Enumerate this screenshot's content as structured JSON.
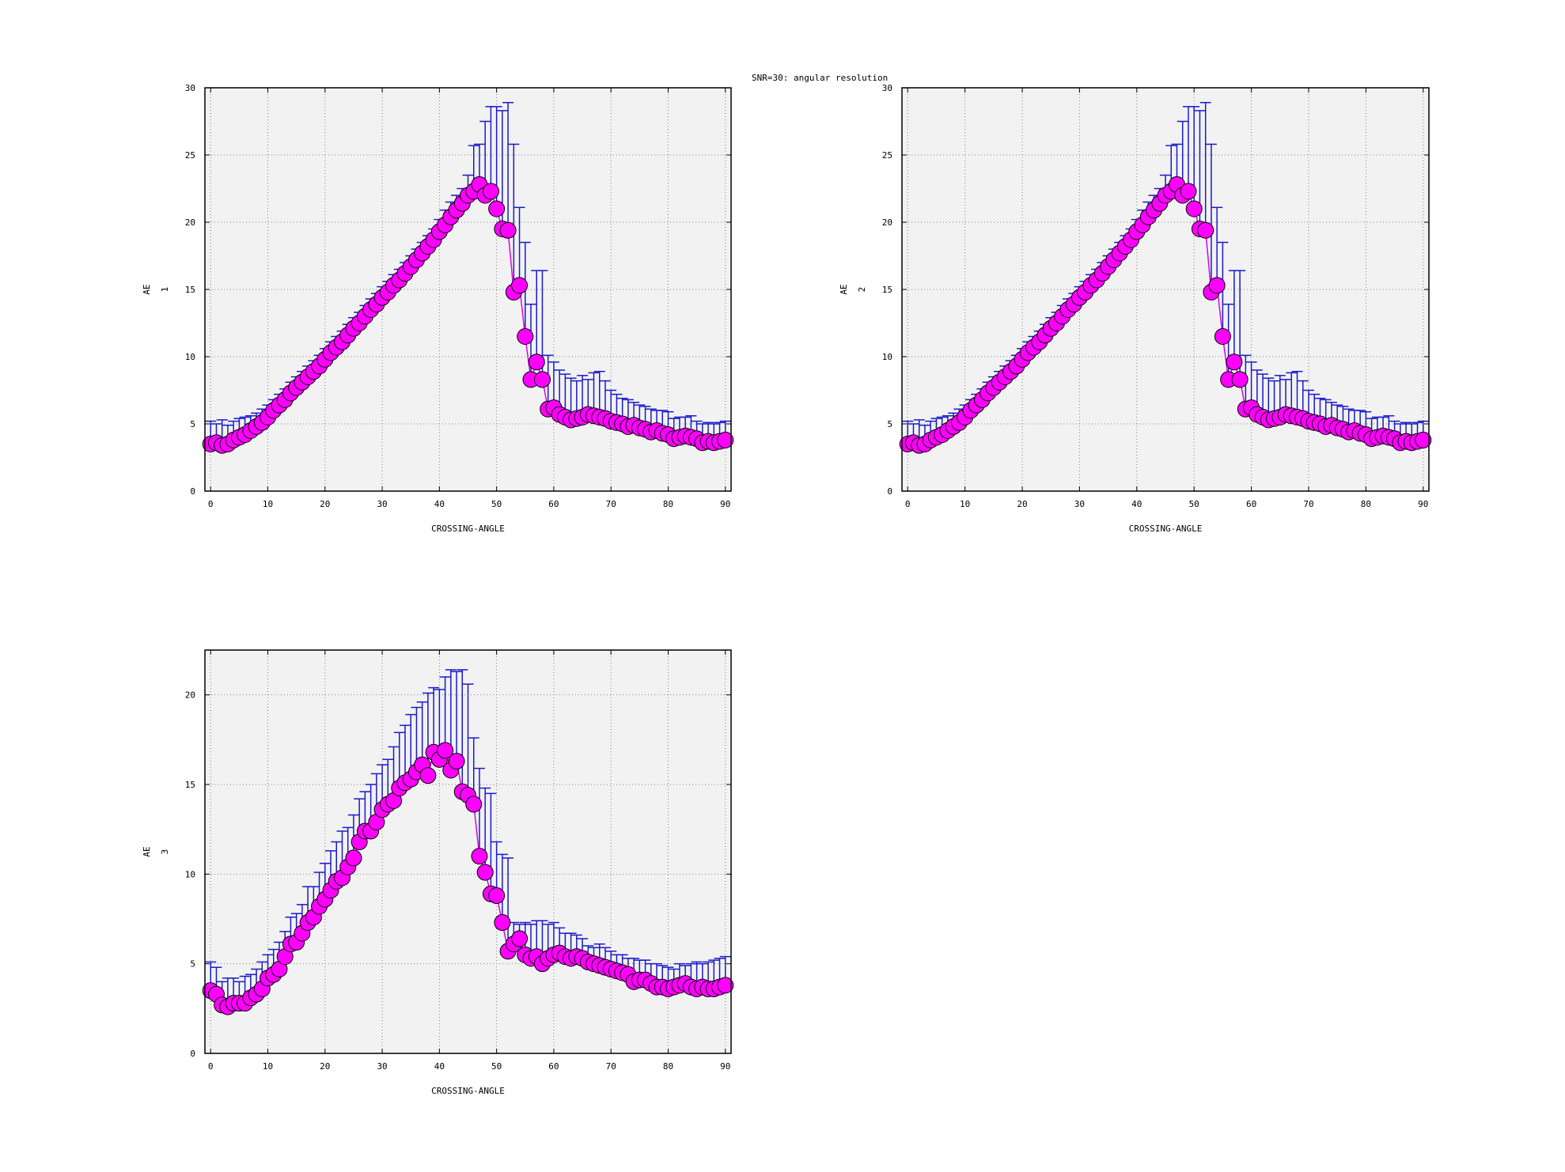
{
  "figure": {
    "title": "SNR=30: angular resolution"
  },
  "colors": {
    "background": "#ffffff",
    "plot_area": "#f2f2f2",
    "grid": "#808080",
    "marker_fill": "#ff00ff",
    "marker_edge": "#000000",
    "error_bar": "#1a1acc",
    "line": "#e000e0"
  },
  "chart_data": [
    {
      "type": "scatter",
      "title": "",
      "xlabel": "CROSSING-ANGLE",
      "ylabel": "AE",
      "ylabel_sub": "1",
      "xlim": [
        -1,
        91
      ],
      "ylim": [
        0,
        30
      ],
      "xticks": [
        0,
        10,
        20,
        30,
        40,
        50,
        60,
        70,
        80,
        90
      ],
      "yticks": [
        0,
        5,
        10,
        15,
        20,
        25,
        30
      ],
      "grid": true,
      "x": [
        0,
        1,
        2,
        3,
        4,
        5,
        6,
        7,
        8,
        9,
        10,
        11,
        12,
        13,
        14,
        15,
        16,
        17,
        18,
        19,
        20,
        21,
        22,
        23,
        24,
        25,
        26,
        27,
        28,
        29,
        30,
        31,
        32,
        33,
        34,
        35,
        36,
        37,
        38,
        39,
        40,
        41,
        42,
        43,
        44,
        45,
        46,
        47,
        48,
        49,
        50,
        51,
        52,
        53,
        54,
        55,
        56,
        57,
        58,
        59,
        60,
        61,
        62,
        63,
        64,
        65,
        66,
        67,
        68,
        69,
        70,
        71,
        72,
        73,
        74,
        75,
        76,
        77,
        78,
        79,
        80,
        81,
        82,
        83,
        84,
        85,
        86,
        87,
        88,
        89,
        90
      ],
      "y": [
        3.5,
        3.6,
        3.4,
        3.5,
        3.8,
        4.0,
        4.2,
        4.5,
        4.8,
        5.1,
        5.5,
        6.0,
        6.4,
        6.8,
        7.3,
        7.7,
        8.1,
        8.5,
        8.9,
        9.3,
        9.8,
        10.3,
        10.7,
        11.1,
        11.6,
        12.1,
        12.5,
        13.0,
        13.5,
        13.9,
        14.4,
        14.8,
        15.3,
        15.7,
        16.2,
        16.7,
        17.2,
        17.7,
        18.2,
        18.7,
        19.3,
        19.8,
        20.4,
        20.9,
        21.4,
        22.0,
        22.3,
        22.8,
        22.0,
        22.3,
        21.0,
        19.5,
        19.4,
        14.8,
        15.3,
        11.5,
        8.3,
        9.6,
        8.3,
        6.1,
        6.2,
        5.7,
        5.5,
        5.3,
        5.4,
        5.5,
        5.7,
        5.6,
        5.5,
        5.4,
        5.2,
        5.1,
        5.0,
        4.8,
        4.9,
        4.7,
        4.6,
        4.4,
        4.5,
        4.3,
        4.2,
        3.9,
        4.0,
        4.1,
        4.0,
        3.9,
        3.6,
        3.7,
        3.6,
        3.7,
        3.8
      ],
      "yerr_upper": [
        5.2,
        5.0,
        5.3,
        4.9,
        5.2,
        5.4,
        5.5,
        5.6,
        5.8,
        6.1,
        6.4,
        6.8,
        7.2,
        7.6,
        8.1,
        8.5,
        8.9,
        9.3,
        9.7,
        10.1,
        10.6,
        11.1,
        11.5,
        11.9,
        12.4,
        12.9,
        13.3,
        13.8,
        14.3,
        14.7,
        15.2,
        15.6,
        16.1,
        16.5,
        17.0,
        17.5,
        18.0,
        18.5,
        19.0,
        19.5,
        20.2,
        20.9,
        21.5,
        22.0,
        22.5,
        23.5,
        25.7,
        25.8,
        27.5,
        28.6,
        28.6,
        28.3,
        28.9,
        25.8,
        21.1,
        18.5,
        13.9,
        16.4,
        16.4,
        10.1,
        9.6,
        9.0,
        8.7,
        8.4,
        8.2,
        8.6,
        8.3,
        8.8,
        8.9,
        8.2,
        7.5,
        7.2,
        6.9,
        6.8,
        6.6,
        6.4,
        6.3,
        6.1,
        6.0,
        6.0,
        5.9,
        5.4,
        5.5,
        5.5,
        5.6,
        5.2,
        5.0,
        5.1,
        5.0,
        5.1,
        5.2
      ]
    },
    {
      "type": "scatter",
      "title": "",
      "xlabel": "CROSSING-ANGLE",
      "ylabel": "AE",
      "ylabel_sub": "2",
      "xlim": [
        -1,
        91
      ],
      "ylim": [
        0,
        30
      ],
      "xticks": [
        0,
        10,
        20,
        30,
        40,
        50,
        60,
        70,
        80,
        90
      ],
      "yticks": [
        0,
        5,
        10,
        15,
        20,
        25,
        30
      ],
      "grid": true,
      "x": [
        0,
        1,
        2,
        3,
        4,
        5,
        6,
        7,
        8,
        9,
        10,
        11,
        12,
        13,
        14,
        15,
        16,
        17,
        18,
        19,
        20,
        21,
        22,
        23,
        24,
        25,
        26,
        27,
        28,
        29,
        30,
        31,
        32,
        33,
        34,
        35,
        36,
        37,
        38,
        39,
        40,
        41,
        42,
        43,
        44,
        45,
        46,
        47,
        48,
        49,
        50,
        51,
        52,
        53,
        54,
        55,
        56,
        57,
        58,
        59,
        60,
        61,
        62,
        63,
        64,
        65,
        66,
        67,
        68,
        69,
        70,
        71,
        72,
        73,
        74,
        75,
        76,
        77,
        78,
        79,
        80,
        81,
        82,
        83,
        84,
        85,
        86,
        87,
        88,
        89,
        90
      ],
      "y": [
        3.5,
        3.6,
        3.4,
        3.5,
        3.8,
        4.0,
        4.2,
        4.5,
        4.8,
        5.1,
        5.5,
        6.0,
        6.4,
        6.8,
        7.3,
        7.7,
        8.1,
        8.5,
        8.9,
        9.3,
        9.8,
        10.3,
        10.7,
        11.1,
        11.6,
        12.1,
        12.5,
        13.0,
        13.5,
        13.9,
        14.4,
        14.8,
        15.3,
        15.7,
        16.2,
        16.7,
        17.2,
        17.7,
        18.2,
        18.7,
        19.3,
        19.8,
        20.4,
        20.9,
        21.4,
        22.0,
        22.3,
        22.8,
        22.0,
        22.3,
        21.0,
        19.5,
        19.4,
        14.8,
        15.3,
        11.5,
        8.3,
        9.6,
        8.3,
        6.1,
        6.2,
        5.7,
        5.5,
        5.3,
        5.4,
        5.5,
        5.7,
        5.6,
        5.5,
        5.4,
        5.2,
        5.1,
        5.0,
        4.8,
        4.9,
        4.7,
        4.6,
        4.4,
        4.5,
        4.3,
        4.2,
        3.9,
        4.0,
        4.1,
        4.0,
        3.9,
        3.6,
        3.7,
        3.6,
        3.7,
        3.8
      ],
      "yerr_upper": [
        5.2,
        5.0,
        5.3,
        4.9,
        5.2,
        5.4,
        5.5,
        5.6,
        5.8,
        6.1,
        6.4,
        6.8,
        7.2,
        7.6,
        8.1,
        8.5,
        8.9,
        9.3,
        9.7,
        10.1,
        10.6,
        11.1,
        11.5,
        11.9,
        12.4,
        12.9,
        13.3,
        13.8,
        14.3,
        14.7,
        15.2,
        15.6,
        16.1,
        16.5,
        17.0,
        17.5,
        18.0,
        18.5,
        19.0,
        19.5,
        20.2,
        20.9,
        21.5,
        22.0,
        22.5,
        23.5,
        25.7,
        25.8,
        27.5,
        28.6,
        28.6,
        28.3,
        28.9,
        25.8,
        21.1,
        18.5,
        13.9,
        16.4,
        16.4,
        10.1,
        9.6,
        9.0,
        8.7,
        8.4,
        8.2,
        8.6,
        8.3,
        8.8,
        8.9,
        8.2,
        7.5,
        7.2,
        6.9,
        6.8,
        6.6,
        6.4,
        6.3,
        6.1,
        6.0,
        6.0,
        5.9,
        5.4,
        5.5,
        5.5,
        5.6,
        5.2,
        5.0,
        5.1,
        5.0,
        5.1,
        5.2
      ]
    },
    {
      "type": "scatter",
      "title": "",
      "xlabel": "CROSSING-ANGLE",
      "ylabel": "AE",
      "ylabel_sub": "3",
      "xlim": [
        -1,
        91
      ],
      "ylim": [
        0,
        22.5
      ],
      "xticks": [
        0,
        10,
        20,
        30,
        40,
        50,
        60,
        70,
        80,
        90
      ],
      "yticks": [
        0,
        5,
        10,
        15,
        20
      ],
      "grid": true,
      "x": [
        0,
        1,
        2,
        3,
        4,
        5,
        6,
        7,
        8,
        9,
        10,
        11,
        12,
        13,
        14,
        15,
        16,
        17,
        18,
        19,
        20,
        21,
        22,
        23,
        24,
        25,
        26,
        27,
        28,
        29,
        30,
        31,
        32,
        33,
        34,
        35,
        36,
        37,
        38,
        39,
        40,
        41,
        42,
        43,
        44,
        45,
        46,
        47,
        48,
        49,
        50,
        51,
        52,
        53,
        54,
        55,
        56,
        57,
        58,
        59,
        60,
        61,
        62,
        63,
        64,
        65,
        66,
        67,
        68,
        69,
        70,
        71,
        72,
        73,
        74,
        75,
        76,
        77,
        78,
        79,
        80,
        81,
        82,
        83,
        84,
        85,
        86,
        87,
        88,
        89,
        90
      ],
      "y": [
        3.5,
        3.3,
        2.7,
        2.6,
        2.8,
        2.8,
        2.8,
        3.1,
        3.3,
        3.6,
        4.2,
        4.4,
        4.7,
        5.4,
        6.1,
        6.2,
        6.7,
        7.3,
        7.6,
        8.2,
        8.6,
        9.1,
        9.6,
        9.8,
        10.4,
        10.9,
        11.8,
        12.4,
        12.4,
        12.9,
        13.6,
        13.9,
        14.1,
        14.8,
        15.1,
        15.3,
        15.7,
        16.1,
        15.5,
        16.8,
        16.4,
        16.9,
        15.8,
        16.3,
        14.6,
        14.4,
        13.9,
        11.0,
        10.1,
        8.9,
        8.8,
        7.3,
        5.7,
        6.1,
        6.4,
        5.5,
        5.3,
        5.4,
        5.0,
        5.3,
        5.5,
        5.6,
        5.4,
        5.3,
        5.4,
        5.3,
        5.1,
        5.0,
        4.9,
        4.8,
        4.7,
        4.6,
        4.5,
        4.4,
        4.0,
        4.1,
        4.1,
        3.9,
        3.7,
        3.7,
        3.6,
        3.7,
        3.8,
        3.9,
        3.7,
        3.6,
        3.7,
        3.6,
        3.6,
        3.7,
        3.8
      ],
      "yerr_upper": [
        5.1,
        4.8,
        4.0,
        4.2,
        4.2,
        4.0,
        4.3,
        4.4,
        4.7,
        5.1,
        5.5,
        5.8,
        6.2,
        6.8,
        7.6,
        7.8,
        8.3,
        9.3,
        9.3,
        10.1,
        10.6,
        11.3,
        11.8,
        12.4,
        12.6,
        13.3,
        14.2,
        14.6,
        15.0,
        15.6,
        16.1,
        16.4,
        17.1,
        17.9,
        18.3,
        18.9,
        19.3,
        19.6,
        20.1,
        20.4,
        20.3,
        21.0,
        21.4,
        21.3,
        21.4,
        20.6,
        17.6,
        15.9,
        14.8,
        14.5,
        11.8,
        11.1,
        10.9,
        7.3,
        7.2,
        7.3,
        7.2,
        7.4,
        7.4,
        7.2,
        7.3,
        7.0,
        6.7,
        6.7,
        6.6,
        6.4,
        6.0,
        5.9,
        6.1,
        5.9,
        5.7,
        5.5,
        5.5,
        5.3,
        5.3,
        5.2,
        5.2,
        5.0,
        5.0,
        4.9,
        4.8,
        4.7,
        5.0,
        4.9,
        5.0,
        5.1,
        5.0,
        5.1,
        5.2,
        5.3,
        5.4
      ]
    }
  ]
}
